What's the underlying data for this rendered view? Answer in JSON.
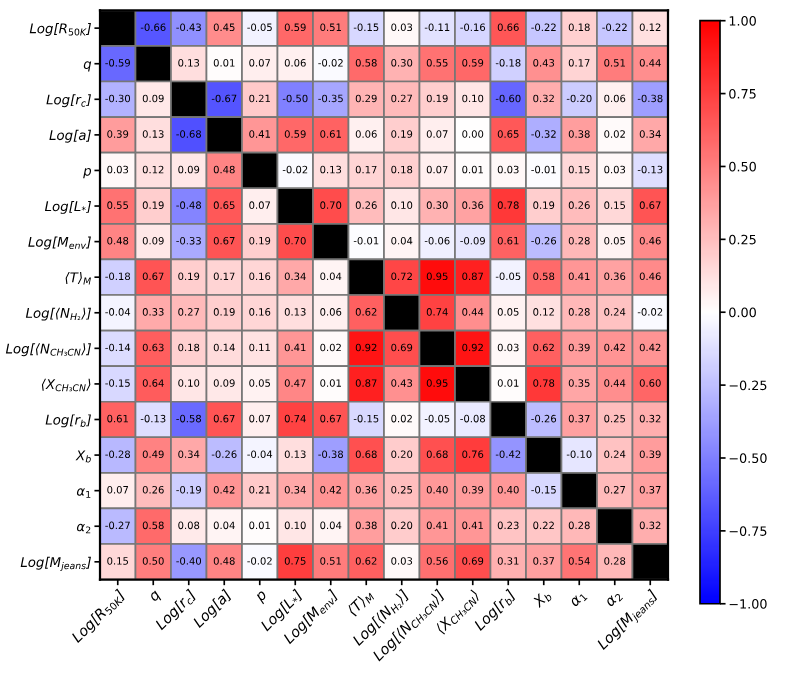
{
  "chart_data": {
    "type": "heatmap",
    "categories": [
      "Log[R$_{50K}$]",
      "q",
      "Log[r$_{c}$]",
      "Log[a]",
      "p",
      "Log[L$_{*}$]",
      "Log[M$_{env}$]",
      "⟨T⟩$_{M}$",
      "Log[⟨N$_{H₂}$⟩]",
      "Log[⟨N$_{CH₃CN}$⟩]",
      "⟨X$_{CH₃CN}$⟩",
      "Log[r$_{b}$]",
      "X$_{b}$",
      "α$_{1}$",
      "α$_{2}$",
      "Log[M$_{jeans}$]"
    ],
    "y_categories": [
      "Log[R$_{50K}$]",
      "q",
      "Log[r$_{c}$]",
      "Log[a]",
      "p",
      "Log[L$_{*}$]",
      "Log[M$_{env}$]",
      "⟨T⟩$_{M}$",
      "Log[⟨N$_{H₂}$⟩]",
      "Log[⟨N$_{CH₃CN}$⟩]",
      "⟨X$_{CH₃CN}$⟩",
      "Log[r$_{b}$]",
      "X$_{b}$",
      "α$_{1}$",
      "α$_{2}$",
      "Log[M$_{jeans}$]"
    ],
    "cells": [
      [
        null,
        -0.66,
        -0.43,
        0.45,
        -0.05,
        0.59,
        0.51,
        -0.15,
        0.03,
        -0.11,
        -0.16,
        0.66,
        -0.22,
        0.18,
        -0.22,
        0.12
      ],
      [
        -0.59,
        null,
        0.13,
        0.01,
        0.07,
        0.06,
        -0.02,
        0.58,
        0.3,
        0.55,
        0.59,
        -0.18,
        0.43,
        0.17,
        0.51,
        0.44
      ],
      [
        -0.3,
        0.09,
        null,
        -0.67,
        0.21,
        -0.5,
        -0.35,
        0.29,
        0.27,
        0.19,
        0.1,
        -0.6,
        0.32,
        -0.2,
        0.06,
        -0.38
      ],
      [
        0.39,
        0.13,
        -0.68,
        null,
        0.41,
        0.59,
        0.61,
        0.06,
        0.19,
        0.07,
        0.0,
        0.65,
        -0.32,
        0.38,
        0.02,
        0.34
      ],
      [
        0.03,
        0.12,
        0.09,
        0.48,
        null,
        -0.02,
        0.13,
        0.17,
        0.18,
        0.07,
        0.01,
        0.03,
        -0.01,
        0.15,
        0.03,
        -0.13
      ],
      [
        0.55,
        0.19,
        -0.48,
        0.65,
        0.07,
        null,
        0.7,
        0.26,
        0.1,
        0.3,
        0.36,
        0.78,
        0.19,
        0.26,
        0.15,
        0.67
      ],
      [
        0.48,
        0.09,
        -0.33,
        0.67,
        0.19,
        0.7,
        null,
        -0.01,
        0.04,
        -0.06,
        -0.09,
        0.61,
        -0.26,
        0.28,
        0.05,
        0.46
      ],
      [
        -0.18,
        0.67,
        0.19,
        0.17,
        0.16,
        0.34,
        0.04,
        null,
        0.72,
        0.95,
        0.87,
        -0.05,
        0.58,
        0.41,
        0.36,
        0.46
      ],
      [
        -0.04,
        0.33,
        0.27,
        0.19,
        0.16,
        0.13,
        0.06,
        0.62,
        null,
        0.74,
        0.44,
        0.05,
        0.12,
        0.28,
        0.24,
        -0.02
      ],
      [
        -0.14,
        0.63,
        0.18,
        0.14,
        0.11,
        0.41,
        0.02,
        0.92,
        0.69,
        null,
        0.92,
        0.03,
        0.62,
        0.39,
        0.42,
        0.42
      ],
      [
        -0.15,
        0.64,
        0.1,
        0.09,
        0.05,
        0.47,
        0.01,
        0.87,
        0.43,
        0.95,
        null,
        0.01,
        0.78,
        0.35,
        0.44,
        0.6
      ],
      [
        0.61,
        -0.13,
        -0.58,
        0.67,
        0.07,
        0.74,
        0.67,
        -0.15,
        0.02,
        -0.05,
        -0.08,
        null,
        -0.26,
        0.37,
        0.25,
        0.32
      ],
      [
        -0.28,
        0.49,
        0.34,
        -0.26,
        -0.04,
        0.13,
        -0.38,
        0.68,
        0.2,
        0.68,
        0.76,
        -0.42,
        null,
        -0.1,
        0.24,
        0.39
      ],
      [
        0.07,
        0.26,
        -0.19,
        0.42,
        0.21,
        0.34,
        0.42,
        0.36,
        0.25,
        0.4,
        0.39,
        0.4,
        -0.15,
        null,
        0.27,
        0.37
      ],
      [
        -0.27,
        0.58,
        0.08,
        0.04,
        0.01,
        0.1,
        0.04,
        0.38,
        0.2,
        0.41,
        0.41,
        0.23,
        0.22,
        0.28,
        null,
        0.32
      ],
      [
        0.15,
        0.5,
        -0.4,
        0.48,
        -0.02,
        0.75,
        0.51,
        0.62,
        0.03,
        0.56,
        0.69,
        0.31,
        0.37,
        0.54,
        0.28,
        null
      ]
    ],
    "cell_labels": [
      [
        null,
        "-0.66",
        "-0.43",
        "0.45",
        "-0.05",
        "0.59",
        "0.51",
        "-0.15",
        "0.03",
        "-0.11",
        "-0.16",
        "0.66",
        "-0.22",
        "0.18",
        "-0.22",
        "0.12"
      ],
      [
        "-0.59",
        null,
        "0.13",
        "0.01",
        "0.07",
        "0.06",
        "-0.02",
        "0.58",
        "0.30",
        "0.55",
        "0.59",
        "-0.18",
        "0.43",
        "0.17",
        "0.51",
        "0.44"
      ],
      [
        "-0.30",
        "0.09",
        null,
        "-0.67",
        "0.21",
        "-0.50",
        "-0.35",
        "0.29",
        "0.27",
        "0.19",
        "0.10",
        "-0.60",
        "0.32",
        "-0.20",
        "0.06",
        "-0.38"
      ],
      [
        "0.39",
        "0.13",
        "-0.68",
        null,
        "0.41",
        "0.59",
        "0.61",
        "0.06",
        "0.19",
        "0.07",
        "0.00",
        "0.65",
        "-0.32",
        "0.38",
        "0.02",
        "0.34"
      ],
      [
        "0.03",
        "0.12",
        "0.09",
        "0.48",
        null,
        "-0.02",
        "0.13",
        "0.17",
        "0.18",
        "0.07",
        "0.01",
        "0.03",
        "-0.01",
        "0.15",
        "0.03",
        "-0.13"
      ],
      [
        "0.55",
        "0.19",
        "-0.48",
        "0.65",
        "0.07",
        null,
        "0.70",
        "0.26",
        "0.10",
        "0.30",
        "0.36",
        "0.78",
        "0.19",
        "0.26",
        "0.15",
        "0.67"
      ],
      [
        "0.48",
        "0.09",
        "-0.33",
        "0.67",
        "0.19",
        "0.70",
        null,
        "-0.01",
        "0.04",
        "-0.06",
        "-0.09",
        "0.61",
        "-0.26",
        "0.28",
        "0.05",
        "0.46"
      ],
      [
        "-0.18",
        "0.67",
        "0.19",
        "0.17",
        "0.16",
        "0.34",
        "0.04",
        null,
        "0.72",
        "0.95",
        "0.87",
        "-0.05",
        "0.58",
        "0.41",
        "0.36",
        "0.46"
      ],
      [
        "-0.04",
        "0.33",
        "0.27",
        "0.19",
        "0.16",
        "0.13",
        "0.06",
        "0.62",
        null,
        "0.74",
        "0.44",
        "0.05",
        "0.12",
        "0.28",
        "0.24",
        "-0.02"
      ],
      [
        "-0.14",
        "0.63",
        "0.18",
        "0.14",
        "0.11",
        "0.41",
        "0.02",
        "0.92",
        "0.69",
        null,
        "0.92",
        "0.03",
        "0.62",
        "0.39",
        "0.42",
        "0.42"
      ],
      [
        "-0.15",
        "0.64",
        "0.10",
        "0.09",
        "0.05",
        "0.47",
        "0.01",
        "0.87",
        "0.43",
        "0.95",
        null,
        "0.01",
        "0.78",
        "0.35",
        "0.44",
        "0.60"
      ],
      [
        "0.61",
        "-0.13",
        "-0.58",
        "0.67",
        "0.07",
        "0.74",
        "0.67",
        "-0.15",
        "0.02",
        "-0.05",
        "-0.08",
        null,
        "-0.26",
        "0.37",
        "0.25",
        "0.32"
      ],
      [
        "-0.28",
        "0.49",
        "0.34",
        "-0.26",
        "-0.04",
        "0.13",
        "-0.38",
        "0.68",
        "0.20",
        "0.68",
        "0.76",
        "-0.42",
        null,
        "-0.10",
        "0.24",
        "0.39"
      ],
      [
        "0.07",
        "0.26",
        "-0.19",
        "0.42",
        "0.21",
        "0.34",
        "0.42",
        "0.36",
        "0.25",
        "0.40",
        "0.39",
        "0.40",
        "-0.15",
        null,
        "0.27",
        "0.37"
      ],
      [
        "-0.27",
        "0.58",
        "0.08",
        "0.04",
        "0.01",
        "0.10",
        "0.04",
        "0.38",
        "0.20",
        "0.41",
        "0.41",
        "0.23",
        "0.22",
        "0.28",
        null,
        "0.32"
      ],
      [
        "0.15",
        "0.50",
        "-0.40",
        "0.48",
        "-0.02",
        "0.75",
        "0.51",
        "0.62",
        "0.03",
        "0.56",
        "0.69",
        "0.31",
        "0.37",
        "0.54",
        "0.28",
        null
      ]
    ],
    "clim": [
      -1,
      1
    ],
    "cticks": [
      {
        "value": -1,
        "label": "−1.00"
      },
      {
        "value": -0.75,
        "label": "−0.75"
      },
      {
        "value": -0.5,
        "label": "−0.50"
      },
      {
        "value": -0.25,
        "label": "−0.25"
      },
      {
        "value": 0,
        "label": "0.00"
      },
      {
        "value": 0.25,
        "label": "0.25"
      },
      {
        "value": 0.5,
        "label": "0.50"
      },
      {
        "value": 0.75,
        "label": "0.75"
      },
      {
        "value": 1,
        "label": "1.00"
      }
    ]
  }
}
